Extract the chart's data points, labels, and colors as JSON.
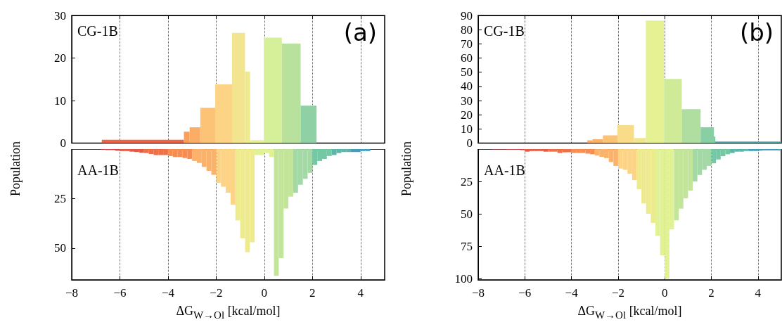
{
  "chart_data": [
    {
      "type": "histogram",
      "title": "(a)",
      "ylabel": "Population",
      "annotations": [
        "CG-1B"
      ],
      "xlim": [
        -8,
        5
      ],
      "xticks": [
        -8,
        -6,
        -4,
        -2,
        0,
        2,
        4
      ],
      "ylim": [
        0,
        30
      ],
      "yticks": [
        0,
        10,
        20,
        30
      ],
      "grid": "x",
      "tick_labels": "y",
      "bins": [
        -6.75,
        -3.34,
        -3.1,
        -2.66,
        -2.04,
        -1.34,
        -0.8,
        -0.59,
        -0.02,
        0.73,
        1.51,
        2.17
      ],
      "values": [
        0.8,
        2.7,
        3.7,
        8.3,
        13.8,
        25.9,
        16.8,
        0.7,
        24.8,
        23.4,
        8.8
      ],
      "colors": [
        "#ec6445",
        "#f9a05d",
        "#fbad66",
        "#fcc275",
        "#fdd385",
        "#f3e48f",
        "#eeea8e",
        "#e6f193",
        "#d6ef99",
        "#b9e19e",
        "#8fd1a4"
      ]
    },
    {
      "type": "histogram",
      "xlabel": "ΔG$_{W→Ol}$ [kcal/mol]",
      "annotations": [
        "AA-1B"
      ],
      "xlim": [
        -8,
        5
      ],
      "xticks": [
        -8,
        -6,
        -4,
        -2,
        0,
        2,
        4
      ],
      "ylim": [
        66,
        0
      ],
      "yticks": [
        25,
        50
      ],
      "grid": "x",
      "bins": [
        -6.8,
        -6.6,
        -6.4,
        -6.2,
        -6.0,
        -5.8,
        -5.6,
        -5.4,
        -5.2,
        -5.0,
        -4.8,
        -4.6,
        -4.4,
        -4.2,
        -4.0,
        -3.8,
        -3.6,
        -3.4,
        -3.2,
        -3.0,
        -2.8,
        -2.6,
        -2.4,
        -2.2,
        -2.0,
        -1.8,
        -1.6,
        -1.4,
        -1.2,
        -1.0,
        -0.8,
        -0.6,
        -0.4,
        -0.2,
        0.0,
        0.2,
        0.4,
        0.6,
        0.8,
        1.0,
        1.2,
        1.4,
        1.6,
        1.8,
        2.0,
        2.2,
        2.4,
        2.6,
        2.8,
        3.0,
        3.2,
        3.4,
        3.6,
        3.8,
        4.0,
        4.2,
        4.4
      ],
      "values": [
        0.3,
        0.5,
        0.5,
        0.8,
        1,
        1,
        1.3,
        1.5,
        1.8,
        2,
        2.5,
        3,
        3,
        3,
        3.5,
        4,
        4,
        4.5,
        5,
        6,
        7,
        9,
        11,
        13,
        17,
        19,
        22,
        28,
        36,
        45,
        52,
        47,
        3,
        3,
        2,
        4,
        64,
        55,
        30,
        24,
        22,
        18,
        15,
        12,
        8,
        6,
        5,
        3.5,
        3,
        2,
        1.5,
        1.5,
        1.5,
        1.5,
        1,
        1
      ],
      "colors": [
        "#d8444c",
        "#d8444c",
        "#d8444c",
        "#d8444c",
        "#e65a43",
        "#e65a43",
        "#e65a43",
        "#e65a43",
        "#e65a43",
        "#f07046",
        "#f07046",
        "#f07046",
        "#f07046",
        "#f07046",
        "#f88d52",
        "#f88d52",
        "#f88d52",
        "#f88d52",
        "#f88d52",
        "#fbb36b",
        "#fbb36b",
        "#fbb36b",
        "#fbb36b",
        "#fbb36b",
        "#fdd385",
        "#fdd385",
        "#fdd385",
        "#fdd385",
        "#eeea8e",
        "#eeea8e",
        "#eeea8e",
        "#eeea8e",
        "#e0f294",
        "#e0f294",
        "#e0f294",
        "#e0f294",
        "#c3e59a",
        "#c3e59a",
        "#c3e59a",
        "#c3e59a",
        "#a3d9a4",
        "#a3d9a4",
        "#a3d9a4",
        "#a3d9a4",
        "#74c8a4",
        "#74c8a4",
        "#74c8a4",
        "#74c8a4",
        "#5bb6a9",
        "#5bb6a9",
        "#5bb6a9",
        "#5bb6a9",
        "#3f9fbc",
        "#3f9fbc",
        "#3f9fbc",
        "#3f9fbc"
      ]
    },
    {
      "type": "histogram",
      "title": "(b)",
      "ylabel": "Population",
      "annotations": [
        "CG-1B"
      ],
      "xlim": [
        -8,
        5
      ],
      "xticks": [
        -8,
        -6,
        -4,
        -2,
        0,
        2,
        4
      ],
      "ylim": [
        0,
        90
      ],
      "yticks": [
        0,
        10,
        20,
        30,
        40,
        50,
        60,
        70,
        80,
        90
      ],
      "grid": "x",
      "tick_labels": "y",
      "bins": [
        -3.32,
        -3.1,
        -2.65,
        -2.03,
        -1.32,
        -0.81,
        -0.03,
        0.73,
        1.54,
        2.11,
        2.17,
        5.0
      ],
      "values": [
        2,
        2.7,
        5.4,
        12.6,
        3.6,
        86.4,
        45.2,
        23.9,
        11.1,
        4.6,
        1.1
      ],
      "colors": [
        "#fbad66",
        "#fbb36b",
        "#fcc275",
        "#f9dc8a",
        "#f0e690",
        "#e6f193",
        "#cfeb98",
        "#b0dda0",
        "#88cfa4",
        "#74c8a4",
        "#4fa9b1"
      ]
    },
    {
      "type": "histogram",
      "xlabel": "ΔG$_{W→Ol}$ [kcal/mol]",
      "annotations": [
        "AA-1B"
      ],
      "xlim": [
        -8,
        5
      ],
      "xticks": [
        -8,
        -6,
        -4,
        -2,
        0,
        2,
        4
      ],
      "ylim": [
        101,
        0
      ],
      "yticks": [
        25,
        50,
        75,
        100
      ],
      "grid": "x",
      "bins": [
        -7.4,
        -7.2,
        -7.0,
        -6.8,
        -6.6,
        -6.4,
        -6.2,
        -6.0,
        -5.8,
        -5.6,
        -5.4,
        -5.2,
        -5.0,
        -4.8,
        -4.6,
        -4.4,
        -4.2,
        -4.0,
        -3.8,
        -3.6,
        -3.4,
        -3.2,
        -3.0,
        -2.8,
        -2.6,
        -2.4,
        -2.2,
        -2.0,
        -1.8,
        -1.6,
        -1.4,
        -1.2,
        -1.0,
        -0.8,
        -0.6,
        -0.4,
        -0.2,
        0.0,
        0.2,
        0.4,
        0.6,
        0.8,
        1.0,
        1.2,
        1.4,
        1.6,
        1.8,
        2.0,
        2.2,
        2.4,
        2.6,
        2.8,
        3.0,
        3.2,
        3.4,
        3.6,
        3.8,
        4.0,
        4.2,
        4.4,
        4.6,
        4.8,
        5.0
      ],
      "values": [
        0.3,
        0.3,
        0.3,
        0.5,
        0.5,
        0.5,
        0.8,
        2,
        1.5,
        1.5,
        1.5,
        2,
        2,
        2,
        3,
        2.5,
        2.5,
        3,
        3,
        3,
        3.5,
        4,
        5,
        6,
        7,
        10,
        13,
        15,
        16,
        19,
        24,
        31,
        42,
        50,
        57,
        67,
        82,
        100,
        62,
        55,
        46,
        38,
        32,
        25,
        20,
        16,
        13,
        11,
        8,
        5.5,
        4,
        3,
        2,
        2,
        1.5,
        1.5,
        1.5,
        1.2,
        1,
        1,
        1,
        1
      ],
      "colors": [
        "#d8444c",
        "#d8444c",
        "#d8444c",
        "#d8444c",
        "#d8444c",
        "#d8444c",
        "#d8444c",
        "#e65a43",
        "#e65a43",
        "#e65a43",
        "#e65a43",
        "#e65a43",
        "#f07046",
        "#f07046",
        "#f07046",
        "#f07046",
        "#f07046",
        "#f88d52",
        "#f88d52",
        "#f88d52",
        "#f88d52",
        "#f88d52",
        "#fbb36b",
        "#fbb36b",
        "#fbb36b",
        "#fbb36b",
        "#fbb36b",
        "#fdd385",
        "#fdd385",
        "#fdd385",
        "#fdd385",
        "#eeea8e",
        "#eeea8e",
        "#eeea8e",
        "#eeea8e",
        "#e0f294",
        "#e0f294",
        "#e0f294",
        "#e0f294",
        "#c3e59a",
        "#c3e59a",
        "#c3e59a",
        "#c3e59a",
        "#a3d9a4",
        "#a3d9a4",
        "#a3d9a4",
        "#a3d9a4",
        "#74c8a4",
        "#74c8a4",
        "#74c8a4",
        "#74c8a4",
        "#5bb6a9",
        "#5bb6a9",
        "#5bb6a9",
        "#5bb6a9",
        "#3f9fbc",
        "#3f9fbc",
        "#3f9fbc",
        "#3f9fbc",
        "#3f9fbc",
        "#3f9fbc",
        "#3f9fbc"
      ]
    }
  ]
}
